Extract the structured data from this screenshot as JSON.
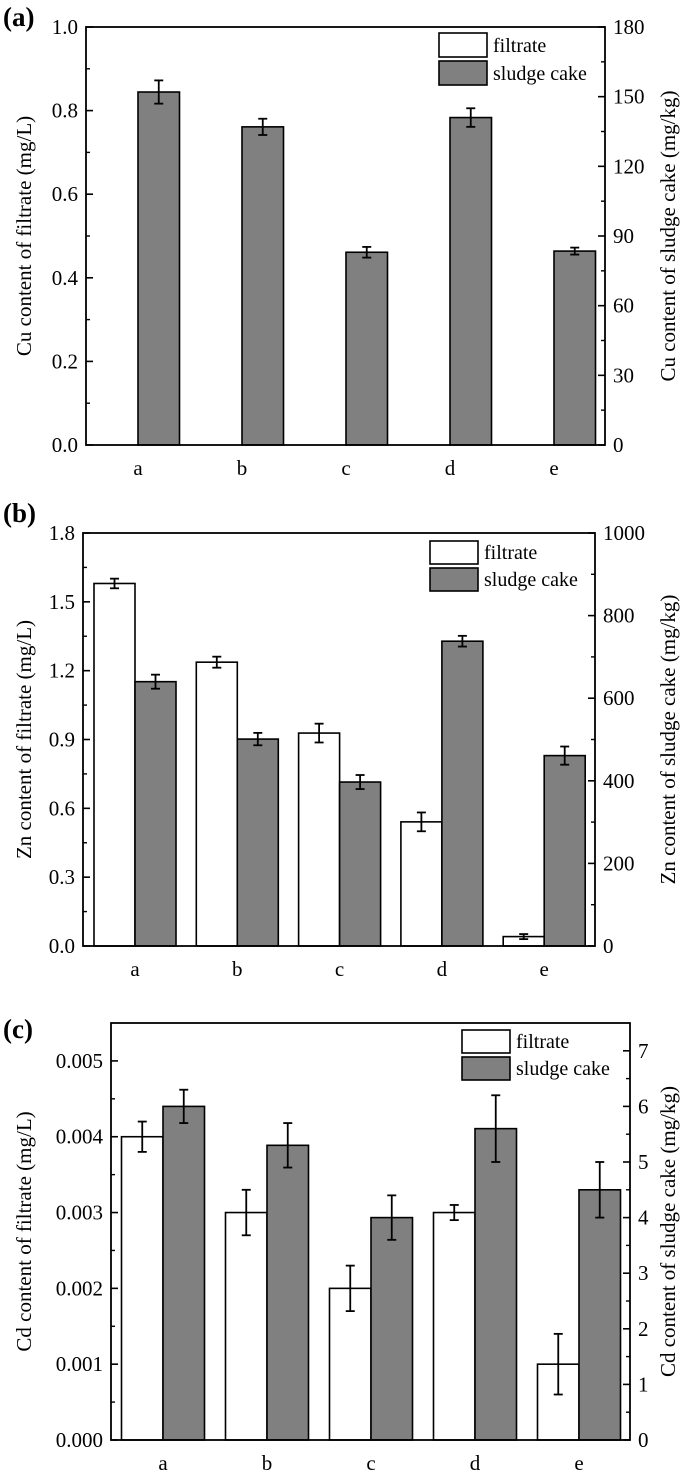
{
  "colors": {
    "filtrate": "#ffffff",
    "sludge_cake": "#808080",
    "axis": "#000000"
  },
  "chart_data": [
    {
      "panel": "(a)",
      "type": "bar",
      "categories": [
        "a",
        "b",
        "c",
        "d",
        "e"
      ],
      "ylabel_left": "Cu content of filtrate (mg/L)",
      "ylabel_right": "Cu content of sludge cake (mg/kg)",
      "ylim_left": [
        0,
        1.0
      ],
      "ylim_right": [
        0,
        180
      ],
      "yticks_left": [
        "0.0",
        "0.2",
        "0.4",
        "0.6",
        "0.8",
        "1.0"
      ],
      "yticks_right": [
        "0",
        "30",
        "60",
        "90",
        "120",
        "150",
        "180"
      ],
      "legend": {
        "placement": "top-right",
        "entries": [
          "filtrate",
          "sludge cake"
        ]
      },
      "series": [
        {
          "name": "filtrate",
          "axis": "left",
          "values": [
            null,
            null,
            null,
            null,
            null
          ],
          "errors": [
            null,
            null,
            null,
            null,
            null
          ]
        },
        {
          "name": "sludge cake",
          "axis": "right",
          "values": [
            152,
            137,
            83,
            141,
            83.5
          ],
          "errors": [
            5,
            3.5,
            2.3,
            4,
            1.5
          ]
        }
      ]
    },
    {
      "panel": "(b)",
      "type": "bar",
      "categories": [
        "a",
        "b",
        "c",
        "d",
        "e"
      ],
      "ylabel_left": "Zn content of filtrate (mg/L)",
      "ylabel_right": "Zn content of sludge cake (mg/kg)",
      "ylim_left": [
        0,
        1.8
      ],
      "ylim_right": [
        0,
        1000
      ],
      "yticks_left": [
        "0.0",
        "0.3",
        "0.6",
        "0.9",
        "1.2",
        "1.5",
        "1.8"
      ],
      "yticks_right": [
        "0",
        "200",
        "400",
        "600",
        "800",
        "1000"
      ],
      "legend": {
        "placement": "top-right",
        "entries": [
          "filtrate",
          "sludge cake"
        ]
      },
      "series": [
        {
          "name": "filtrate",
          "axis": "left",
          "values": [
            1.58,
            1.237,
            0.928,
            0.541,
            0.041
          ],
          "errors": [
            0.021,
            0.024,
            0.041,
            0.041,
            0.011
          ]
        },
        {
          "name": "sludge cake",
          "axis": "right",
          "values": [
            640,
            501,
            397,
            738,
            461
          ],
          "errors": [
            17,
            15,
            17,
            13,
            22
          ]
        }
      ]
    },
    {
      "panel": "(c)",
      "type": "bar",
      "categories": [
        "a",
        "b",
        "c",
        "d",
        "e"
      ],
      "ylabel_left": "Cd content of filtrate (mg/L)",
      "ylabel_right": "Cd content of sludge cake (mg/kg)",
      "ylim_left": [
        0,
        0.0055
      ],
      "ylim_right": [
        0,
        7.5
      ],
      "yticks_left": [
        "0.000",
        "0.001",
        "0.002",
        "0.003",
        "0.004",
        "0.005"
      ],
      "yticks_right": [
        "0",
        "1",
        "2",
        "3",
        "4",
        "5",
        "6",
        "7"
      ],
      "legend": {
        "placement": "top-right",
        "entries": [
          "filtrate",
          "sludge cake"
        ]
      },
      "series": [
        {
          "name": "filtrate",
          "axis": "left",
          "values": [
            0.004,
            0.003,
            0.002,
            0.003,
            0.001
          ],
          "errors": [
            0.0002,
            0.0003,
            0.0003,
            0.0001,
            0.0004
          ]
        },
        {
          "name": "sludge cake",
          "axis": "right",
          "values": [
            6.0,
            5.3,
            4.0,
            5.6,
            4.5
          ],
          "errors": [
            0.3,
            0.4,
            0.4,
            0.6,
            0.5
          ]
        }
      ]
    }
  ]
}
